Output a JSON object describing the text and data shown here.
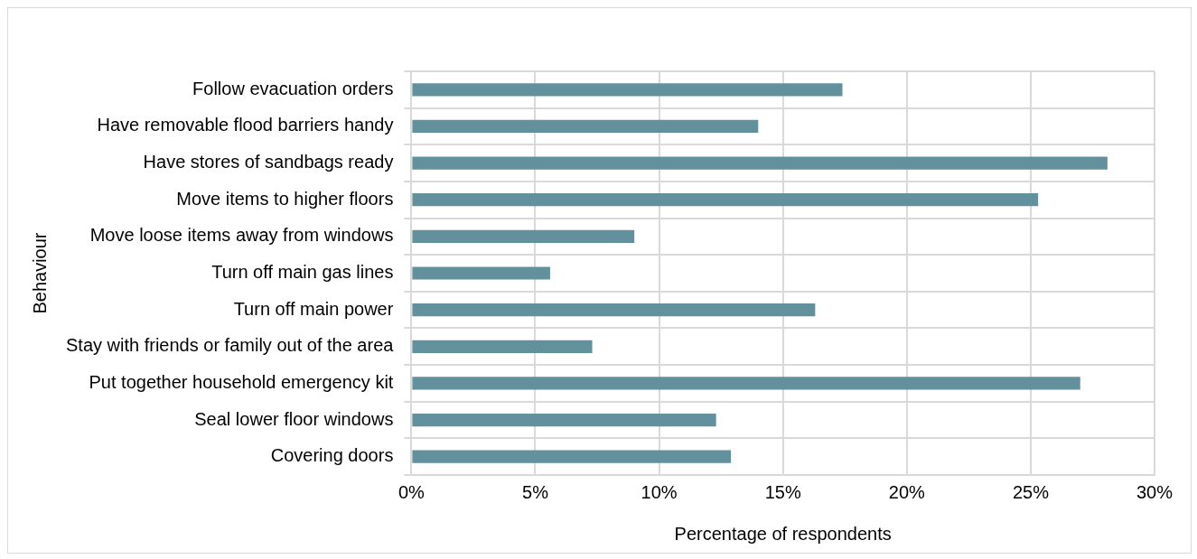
{
  "chart_data": {
    "type": "bar",
    "orientation": "horizontal",
    "xlabel": "Percentage of respondents",
    "ylabel": "Behaviour",
    "categories": [
      "Follow evacuation orders",
      "Have removable flood barriers handy",
      "Have stores of sandbags ready",
      "Move items to higher floors",
      "Move loose items away from windows",
      "Turn off main gas lines",
      "Turn off main power",
      "Stay with friends or family out of the area",
      "Put together household emergency kit",
      "Seal lower floor windows",
      "Covering doors"
    ],
    "values": [
      17.4,
      14.0,
      28.1,
      25.3,
      9.0,
      5.6,
      16.3,
      7.3,
      27.0,
      12.3,
      12.9
    ],
    "color": "#62919d",
    "xlim": [
      0,
      30
    ],
    "xticks": [
      {
        "value": 0,
        "label": "0%"
      },
      {
        "value": 5,
        "label": "5%"
      },
      {
        "value": 10,
        "label": "10%"
      },
      {
        "value": 15,
        "label": "15%"
      },
      {
        "value": 20,
        "label": "20%"
      },
      {
        "value": 25,
        "label": "25%"
      },
      {
        "value": 30,
        "label": "30%"
      }
    ],
    "grid": true,
    "legend": false
  }
}
